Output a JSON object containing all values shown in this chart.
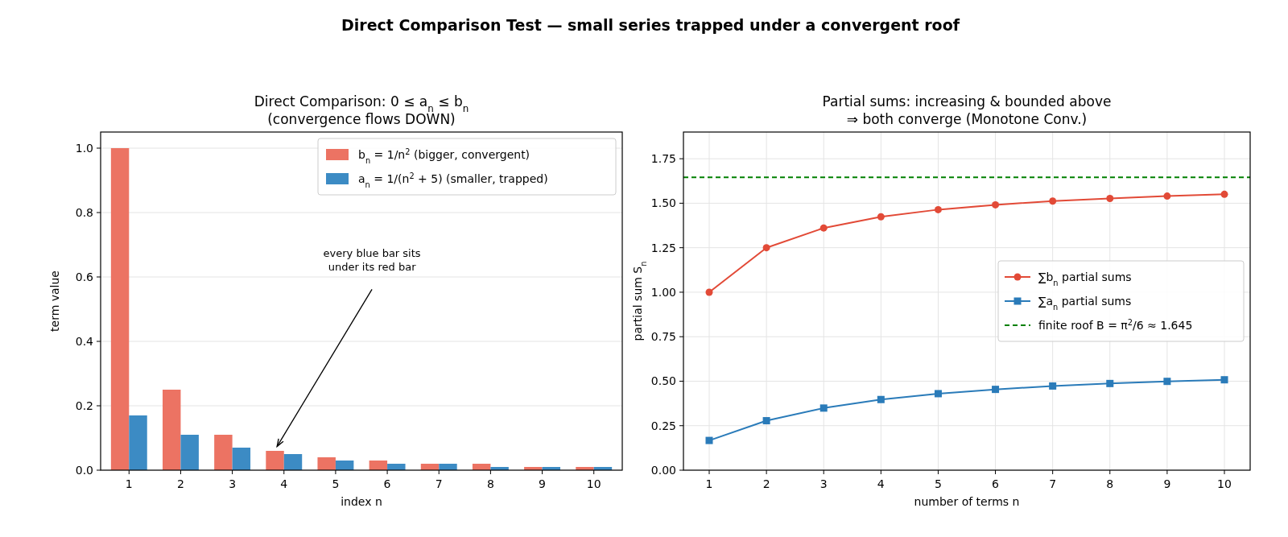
{
  "chart_data": [
    {
      "type": "bar",
      "title": "Direct Comparison: 0 ≤ a$_{n}$ ≤ b$_{n}$\n(convergence flows DOWN)",
      "xlabel": "index n",
      "ylabel": "term value",
      "categories": [
        "1",
        "2",
        "3",
        "4",
        "5",
        "6",
        "7",
        "8",
        "9",
        "10"
      ],
      "series": [
        {
          "name": "b$_{n}$ = 1/n$^{2}$  (bigger, convergent)",
          "color": "#ec7363",
          "values": [
            1.0,
            0.25,
            0.11,
            0.06,
            0.04,
            0.03,
            0.02,
            0.02,
            0.01,
            0.01
          ]
        },
        {
          "name": "a$_{n}$ = 1/(n$^{2}$ + 5)  (smaller, trapped)",
          "color": "#3c8bc4",
          "values": [
            0.17,
            0.11,
            0.07,
            0.05,
            0.03,
            0.02,
            0.02,
            0.01,
            0.01,
            0.01
          ]
        }
      ],
      "ylim": [
        0,
        1.05
      ],
      "yticks": [
        {
          "value": 0,
          "label": "0.0"
        },
        0.2,
        0.4,
        0.6,
        0.8,
        {
          "value": 1,
          "label": "1.0"
        }
      ],
      "grid": "y",
      "legend": "top right",
      "annotations": [
        "Direct Comparison Test — small series trapped under a convergent roof",
        "every blue bar sits\nunder its red bar"
      ]
    },
    {
      "type": "line",
      "title": "Partial sums: increasing & bounded above\n⇒ both converge (Monotone Conv.)",
      "xlabel": "number of terms n",
      "ylabel": "partial sum S$_{n}$",
      "x": [
        1,
        2,
        3,
        4,
        5,
        6,
        7,
        8,
        9,
        10
      ],
      "series": [
        {
          "name": "∑b$_{n}$ partial sums",
          "color": "#e24a37",
          "marker": "circle",
          "values": [
            1.0,
            1.25,
            1.361,
            1.424,
            1.464,
            1.491,
            1.512,
            1.527,
            1.54,
            1.55
          ]
        },
        {
          "name": "∑a$_{n}$ partial sums",
          "color": "#2a7bb9",
          "marker": "square",
          "values": [
            0.167,
            0.278,
            0.349,
            0.397,
            0.43,
            0.454,
            0.473,
            0.487,
            0.499,
            0.508
          ]
        }
      ],
      "xlim": [
        0.55,
        10.45
      ],
      "xticks": [
        1,
        2,
        3,
        4,
        5,
        6,
        7,
        8,
        9,
        10
      ],
      "ylim": [
        0,
        1.9
      ],
      "yticks": [
        {
          "value": 0,
          "label": "0.00"
        },
        0.25,
        {
          "value": 0.5,
          "label": "0.50"
        },
        0.75,
        {
          "value": 1,
          "label": "1.00"
        },
        1.25,
        {
          "value": 1.5,
          "label": "1.50"
        },
        1.75
      ],
      "ref_lines": [
        {
          "axis": "y",
          "value": 1.645,
          "label": "finite roof B = π$^{2}$/6 ≈ 1.645",
          "color": "#008000",
          "line_style": "dashed"
        }
      ],
      "grid": true,
      "legend": "center right"
    }
  ]
}
